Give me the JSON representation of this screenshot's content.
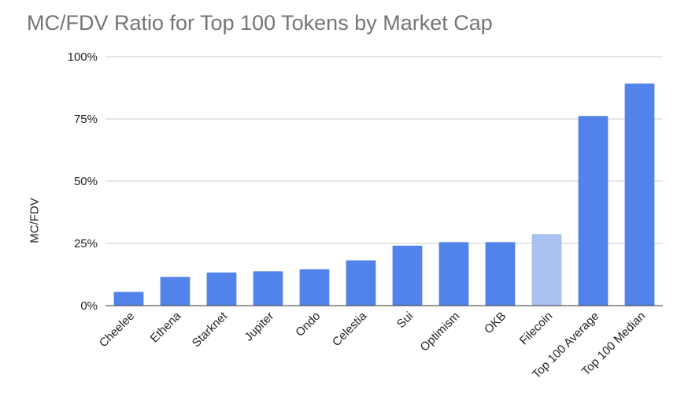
{
  "chart_data": {
    "type": "bar",
    "title": "MC/FDV Ratio for Top 100 Tokens by Market Cap",
    "xlabel": "",
    "ylabel": "MC/FDV",
    "ylim": [
      0,
      100
    ],
    "y_ticks": [
      "0%",
      "25%",
      "50%",
      "75%",
      "100%"
    ],
    "grid": true,
    "legend": "none",
    "categories": [
      "Cheelee",
      "Ethena",
      "Starknet",
      "Jupiter",
      "Ondo",
      "Celestia",
      "Sui",
      "Optimism",
      "OKB",
      "Filecoin",
      "Top 100 Average",
      "Top 100 Median"
    ],
    "values": [
      5.5,
      11.5,
      13.3,
      13.8,
      14.6,
      18.2,
      24.1,
      25.5,
      25.5,
      28.7,
      76.2,
      89.2
    ],
    "colors": [
      "#5283eb",
      "#5283eb",
      "#5283eb",
      "#5283eb",
      "#5283eb",
      "#5283eb",
      "#5283eb",
      "#5283eb",
      "#5283eb",
      "#a8c1f1",
      "#5283eb",
      "#5283eb"
    ]
  }
}
